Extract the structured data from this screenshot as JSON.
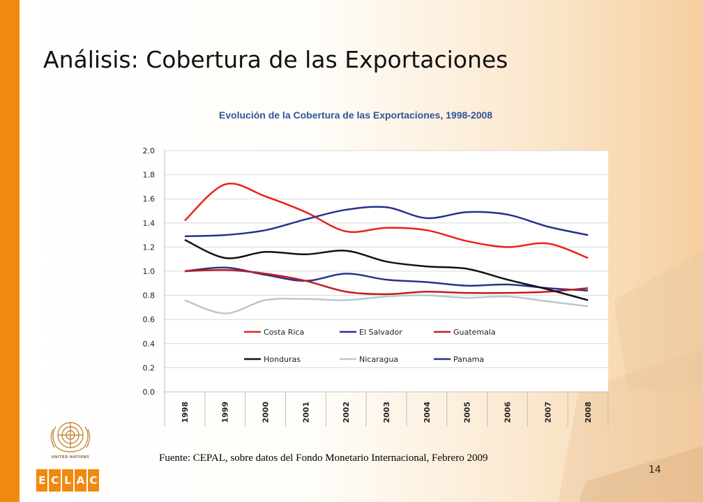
{
  "slide": {
    "title": "Análisis: Cobertura de las Exportaciones",
    "source": "Fuente: CEPAL, sobre datos del Fondo Monetario Internacional, Febrero 2009",
    "page_number": "14"
  },
  "logos": {
    "un_text": "UNITED NATIONS",
    "eclac_letters": [
      "E",
      "C",
      "L",
      "A",
      "C"
    ]
  },
  "colors": {
    "accent_orange": "#ef8a0f",
    "title_blue": "#2f5597"
  },
  "chart_data": {
    "type": "line",
    "title": "Evolución de la Cobertura de las Exportaciones, 1998-2008",
    "xlabel": "",
    "ylabel": "",
    "categories": [
      "1998",
      "1999",
      "2000",
      "2001",
      "2002",
      "2003",
      "2004",
      "2005",
      "2006",
      "2007",
      "2008"
    ],
    "ylim": [
      0,
      2.0
    ],
    "yticks": [
      "0.0",
      "0.2",
      "0.4",
      "0.6",
      "0.8",
      "1.0",
      "1.2",
      "1.4",
      "1.6",
      "1.8",
      "2.0"
    ],
    "grid": true,
    "legend_position": "inside-bottom",
    "series": [
      {
        "name": "Costa Rica",
        "color": "#e8221e",
        "values": [
          1.42,
          1.72,
          1.62,
          1.49,
          1.33,
          1.36,
          1.34,
          1.25,
          1.2,
          1.23,
          1.11
        ]
      },
      {
        "name": "El Salvador",
        "color": "#2a3090",
        "values": [
          1.0,
          1.03,
          0.97,
          0.92,
          0.98,
          0.93,
          0.91,
          0.88,
          0.89,
          0.86,
          0.84
        ]
      },
      {
        "name": "Guatemala",
        "color": "#c11d1d",
        "values": [
          1.0,
          1.01,
          0.98,
          0.92,
          0.83,
          0.81,
          0.83,
          0.82,
          0.82,
          0.83,
          0.86
        ]
      },
      {
        "name": "Honduras",
        "color": "#111111",
        "values": [
          1.26,
          1.11,
          1.16,
          1.14,
          1.17,
          1.08,
          1.04,
          1.02,
          0.93,
          0.85,
          0.76
        ]
      },
      {
        "name": "Nicaragua",
        "color": "#b9c7cd",
        "values": [
          0.76,
          0.65,
          0.76,
          0.77,
          0.76,
          0.79,
          0.8,
          0.78,
          0.79,
          0.75,
          0.71
        ]
      },
      {
        "name": "Panama",
        "color": "#25308f",
        "values": [
          1.29,
          1.3,
          1.34,
          1.43,
          1.51,
          1.53,
          1.44,
          1.49,
          1.47,
          1.37,
          1.3
        ]
      }
    ]
  }
}
